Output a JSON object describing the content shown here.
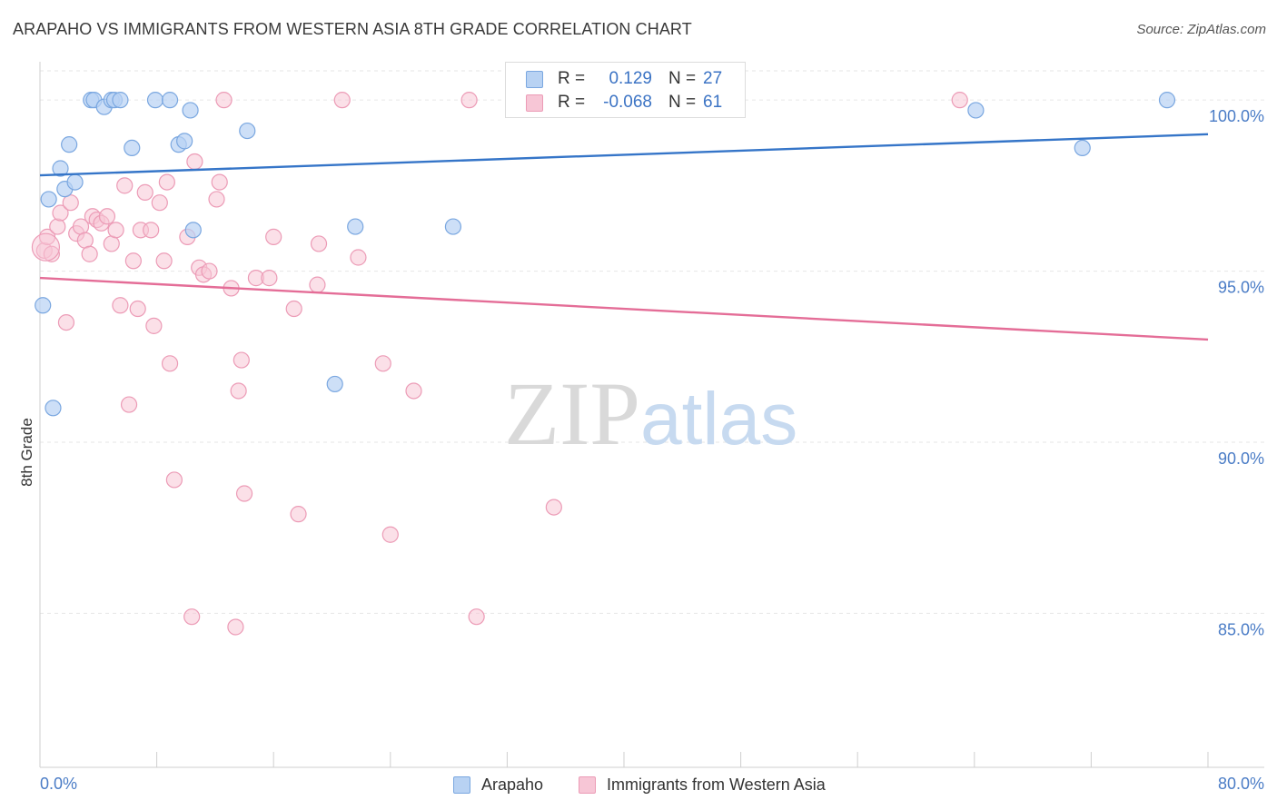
{
  "title": "ARAPAHO VS IMMIGRANTS FROM WESTERN ASIA 8TH GRADE CORRELATION CHART",
  "source": "Source: ZipAtlas.com",
  "watermark": {
    "zip": "ZIP",
    "atlas": "atlas"
  },
  "colors": {
    "blue_fill": "#b8d2f3",
    "blue_stroke": "#7aa7e0",
    "blue_line": "#3575c8",
    "pink_fill": "#f7c6d6",
    "pink_stroke": "#ec9bb6",
    "pink_line": "#e46d97",
    "axis_text": "#4a7cc6",
    "grid": "#e6e6e6"
  },
  "stats": [
    {
      "r_label": "R =",
      "r_value": "0.129",
      "n_label": "N =",
      "n_value": "27"
    },
    {
      "r_label": "R =",
      "r_value": "-0.068",
      "n_label": "N =",
      "n_value": "61"
    }
  ],
  "legend": [
    "Arapaho",
    "Immigrants from Western Asia"
  ],
  "chart_data": {
    "type": "scatter",
    "xlabel": "",
    "ylabel": "8th Grade",
    "xlim": [
      0,
      80
    ],
    "ylim": [
      80.5,
      100.8
    ],
    "x_tick_labels": [
      "0.0%",
      "80.0%"
    ],
    "y_ticks": [
      85,
      90,
      95,
      100
    ],
    "y_tick_labels": [
      "85.0%",
      "90.0%",
      "95.0%",
      "100.0%"
    ],
    "grid": true,
    "legend_position": "bottom-center",
    "series": [
      {
        "name": "Arapaho",
        "color": "#b8d2f3",
        "trend": {
          "x": [
            0,
            80
          ],
          "y": [
            97.8,
            99.0
          ]
        },
        "points": [
          [
            0.2,
            94.0
          ],
          [
            0.6,
            97.1
          ],
          [
            0.9,
            91.0
          ],
          [
            1.4,
            98.0
          ],
          [
            1.7,
            97.4
          ],
          [
            2.0,
            98.7
          ],
          [
            2.4,
            97.6
          ],
          [
            3.5,
            100.0
          ],
          [
            3.7,
            100.0
          ],
          [
            4.4,
            99.8
          ],
          [
            4.9,
            100.0
          ],
          [
            5.1,
            100.0
          ],
          [
            6.3,
            98.6
          ],
          [
            7.9,
            100.0
          ],
          [
            8.9,
            100.0
          ],
          [
            9.5,
            98.7
          ],
          [
            9.9,
            98.8
          ],
          [
            10.3,
            99.7
          ],
          [
            10.5,
            96.2
          ],
          [
            14.2,
            99.1
          ],
          [
            20.2,
            91.7
          ],
          [
            21.6,
            96.3
          ],
          [
            28.3,
            96.3
          ],
          [
            64.1,
            99.7
          ],
          [
            71.4,
            98.6
          ],
          [
            77.2,
            100.0
          ],
          [
            5.5,
            100.0
          ]
        ]
      },
      {
        "name": "Immigrants from Western Asia",
        "color": "#f7c6d6",
        "trend": {
          "x": [
            0,
            80
          ],
          "y": [
            94.8,
            93.0
          ]
        },
        "points": [
          [
            0.3,
            95.6
          ],
          [
            0.5,
            96.0
          ],
          [
            0.8,
            95.5
          ],
          [
            1.2,
            96.3
          ],
          [
            1.4,
            96.7
          ],
          [
            1.8,
            93.5
          ],
          [
            2.1,
            97.0
          ],
          [
            2.5,
            96.1
          ],
          [
            2.8,
            96.3
          ],
          [
            3.1,
            95.9
          ],
          [
            3.4,
            95.5
          ],
          [
            3.6,
            96.6
          ],
          [
            3.9,
            96.5
          ],
          [
            4.2,
            96.4
          ],
          [
            4.6,
            96.6
          ],
          [
            4.9,
            95.8
          ],
          [
            5.2,
            96.2
          ],
          [
            5.5,
            94.0
          ],
          [
            5.8,
            97.5
          ],
          [
            6.1,
            91.1
          ],
          [
            6.4,
            95.3
          ],
          [
            6.7,
            93.9
          ],
          [
            6.9,
            96.2
          ],
          [
            7.2,
            97.3
          ],
          [
            7.6,
            96.2
          ],
          [
            7.8,
            93.4
          ],
          [
            8.2,
            97.0
          ],
          [
            8.5,
            95.3
          ],
          [
            8.7,
            97.6
          ],
          [
            8.9,
            92.3
          ],
          [
            9.2,
            88.9
          ],
          [
            10.1,
            96.0
          ],
          [
            10.4,
            84.9
          ],
          [
            10.6,
            98.2
          ],
          [
            10.9,
            95.1
          ],
          [
            11.2,
            94.9
          ],
          [
            11.6,
            95.0
          ],
          [
            12.1,
            97.1
          ],
          [
            12.3,
            97.6
          ],
          [
            12.6,
            100.0
          ],
          [
            13.1,
            94.5
          ],
          [
            13.4,
            84.6
          ],
          [
            13.6,
            91.5
          ],
          [
            13.8,
            92.4
          ],
          [
            14.0,
            88.5
          ],
          [
            14.8,
            94.8
          ],
          [
            15.7,
            94.8
          ],
          [
            16.0,
            96.0
          ],
          [
            17.4,
            93.9
          ],
          [
            17.7,
            87.9
          ],
          [
            19.0,
            94.6
          ],
          [
            19.1,
            95.8
          ],
          [
            20.7,
            100.0
          ],
          [
            21.8,
            95.4
          ],
          [
            23.5,
            92.3
          ],
          [
            24.0,
            87.3
          ],
          [
            25.6,
            91.5
          ],
          [
            29.4,
            100.0
          ],
          [
            29.9,
            84.9
          ],
          [
            35.2,
            88.1
          ],
          [
            63.0,
            100.0
          ]
        ]
      }
    ]
  }
}
